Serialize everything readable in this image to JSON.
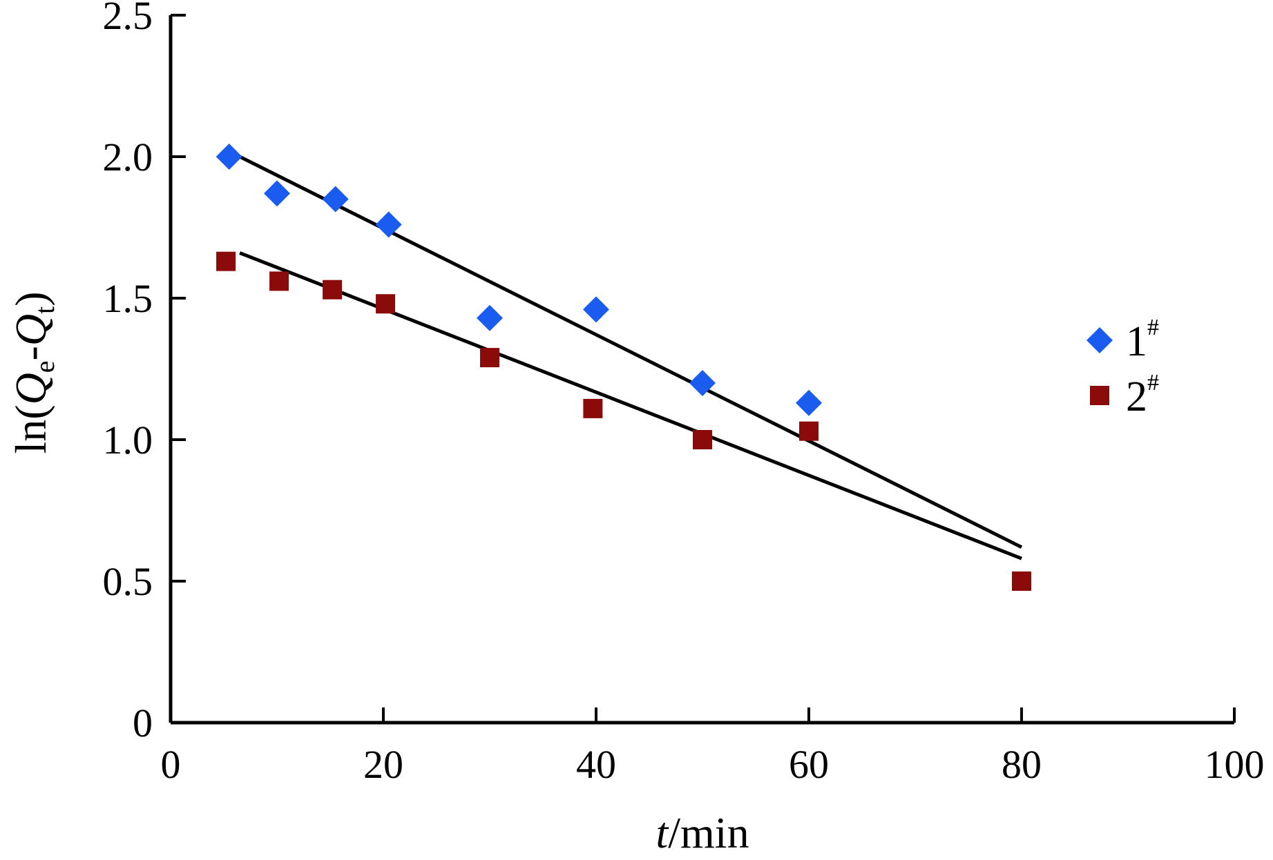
{
  "chart_data": {
    "type": "scatter",
    "title": "",
    "xlabel": {
      "italic": "t",
      "rest": "/min"
    },
    "ylabel": {
      "pre": "ln(",
      "q1": "Q",
      "s1": "e",
      "mid": "-",
      "q2": "Q",
      "s2": "t",
      "post": ")"
    },
    "xlim": [
      0,
      100
    ],
    "ylim": [
      0,
      2.5
    ],
    "xticks": [
      0,
      20,
      40,
      60,
      80,
      100
    ],
    "xtick_labels": [
      "0",
      "20",
      "40",
      "60",
      "80",
      "100"
    ],
    "yticks": [
      0,
      0.5,
      1.0,
      1.5,
      2.0,
      2.5
    ],
    "ytick_labels": [
      "0",
      "0.5",
      "1.0",
      "1.5",
      "2.0",
      "2.5"
    ],
    "grid": false,
    "legend_position": "right",
    "series": [
      {
        "name": "1",
        "name_sup": "#",
        "marker": "diamond",
        "color": "#1a5cf0",
        "x": [
          5.5,
          10,
          15.5,
          20.5,
          30,
          40,
          50,
          60
        ],
        "y": [
          2.0,
          1.87,
          1.85,
          1.76,
          1.43,
          1.46,
          1.2,
          1.13
        ],
        "fit": {
          "x": [
            6.5,
            80
          ],
          "y": [
            2.0,
            0.62
          ]
        }
      },
      {
        "name": "2",
        "name_sup": "#",
        "marker": "square",
        "color": "#8b0a0a",
        "x": [
          5.2,
          10.2,
          15.2,
          20.2,
          30,
          39.7,
          50,
          60,
          80
        ],
        "y": [
          1.63,
          1.56,
          1.53,
          1.48,
          1.29,
          1.11,
          1.0,
          1.03,
          0.5
        ],
        "fit": {
          "x": [
            6.5,
            80
          ],
          "y": [
            1.66,
            0.58
          ]
        }
      }
    ]
  }
}
